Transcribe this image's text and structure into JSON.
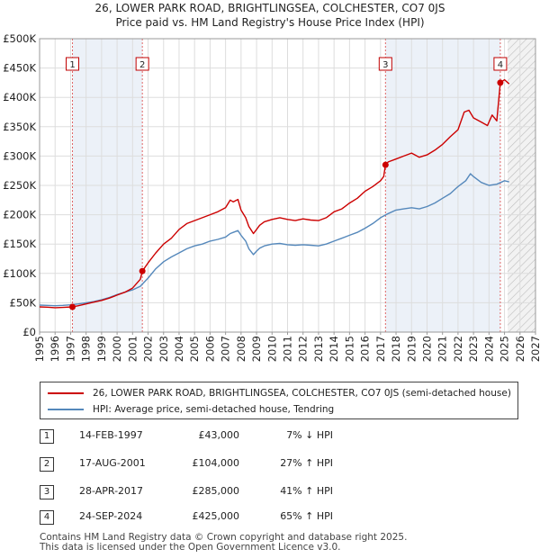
{
  "title_line1": "26, LOWER PARK ROAD, BRIGHTLINGSEA, COLCHESTER, CO7 0JS",
  "title_line2": "Price paid vs. HM Land Registry's House Price Index (HPI)",
  "colors": {
    "property": "#cc0000",
    "hpi": "#5588bb",
    "marker_line": "#e06666",
    "shade": "#dde6f2",
    "grid": "#dddddd"
  },
  "chart_data": {
    "type": "line",
    "xlim": [
      1995,
      2027
    ],
    "ylim": [
      0,
      500000
    ],
    "yticks": [
      0,
      50000,
      100000,
      150000,
      200000,
      250000,
      300000,
      350000,
      400000,
      450000,
      500000
    ],
    "ytick_labels": [
      "£0",
      "£50K",
      "£100K",
      "£150K",
      "£200K",
      "£250K",
      "£300K",
      "£350K",
      "£400K",
      "£450K",
      "£500K"
    ],
    "xticks": [
      1995,
      1996,
      1997,
      1998,
      1999,
      2000,
      2001,
      2002,
      2003,
      2004,
      2005,
      2006,
      2007,
      2008,
      2009,
      2010,
      2011,
      2012,
      2013,
      2014,
      2015,
      2016,
      2017,
      2018,
      2019,
      2020,
      2021,
      2022,
      2023,
      2024,
      2025,
      2026,
      2027
    ],
    "xtick_labels": [
      "1995",
      "1996",
      "1997",
      "1998",
      "1999",
      "2000",
      "2001",
      "2002",
      "2003",
      "2004",
      "2005",
      "2006",
      "2007",
      "2008",
      "2009",
      "2010",
      "2011",
      "2012",
      "2013",
      "2014",
      "2015",
      "2016",
      "2017",
      "2018",
      "2019",
      "2020",
      "2021",
      "2022",
      "2023",
      "2024",
      "2025",
      "2026",
      "2027"
    ],
    "future_from": 2025.2,
    "series": [
      {
        "name": "26, LOWER PARK ROAD, BRIGHTLINGSEA, COLCHESTER, CO7 0JS (semi-detached house)",
        "x": [
          1995.0,
          1995.5,
          1996.0,
          1996.5,
          1997.12,
          1997.5,
          1998.0,
          1998.5,
          1999.0,
          1999.5,
          2000.0,
          2000.5,
          2001.0,
          2001.5,
          2001.63,
          2002.0,
          2002.5,
          2003.0,
          2003.5,
          2004.0,
          2004.5,
          2005.0,
          2005.5,
          2006.0,
          2006.5,
          2007.0,
          2007.3,
          2007.5,
          2007.8,
          2008.0,
          2008.3,
          2008.5,
          2008.8,
          2009.0,
          2009.2,
          2009.5,
          2010.0,
          2010.5,
          2011.0,
          2011.5,
          2012.0,
          2012.5,
          2013.0,
          2013.5,
          2014.0,
          2014.5,
          2015.0,
          2015.5,
          2016.0,
          2016.5,
          2017.0,
          2017.2,
          2017.32,
          2017.5,
          2018.0,
          2018.5,
          2019.0,
          2019.5,
          2020.0,
          2020.5,
          2021.0,
          2021.5,
          2022.0,
          2022.4,
          2022.7,
          2023.0,
          2023.5,
          2023.9,
          2024.2,
          2024.5,
          2024.73,
          2025.0,
          2025.3
        ],
        "values": [
          43000,
          42500,
          41500,
          42000,
          43000,
          45000,
          48000,
          51000,
          54000,
          58000,
          63000,
          68000,
          75000,
          90000,
          104000,
          118000,
          135000,
          150000,
          160000,
          175000,
          185000,
          190000,
          195000,
          200000,
          205000,
          212000,
          225000,
          222000,
          226000,
          208000,
          195000,
          180000,
          168000,
          175000,
          182000,
          188000,
          192000,
          195000,
          192000,
          190000,
          193000,
          191000,
          190000,
          195000,
          205000,
          210000,
          220000,
          228000,
          240000,
          248000,
          258000,
          265000,
          285000,
          290000,
          295000,
          300000,
          305000,
          298000,
          302000,
          310000,
          320000,
          333000,
          345000,
          375000,
          378000,
          365000,
          358000,
          352000,
          370000,
          360000,
          425000,
          430000,
          423000
        ]
      },
      {
        "name": "HPI: Average price, semi-detached house, Tendring",
        "x": [
          1995.0,
          1995.5,
          1996.0,
          1996.5,
          1997.0,
          1997.5,
          1998.0,
          1998.5,
          1999.0,
          1999.5,
          2000.0,
          2000.5,
          2001.0,
          2001.5,
          2002.0,
          2002.5,
          2003.0,
          2003.5,
          2004.0,
          2004.5,
          2005.0,
          2005.5,
          2006.0,
          2006.5,
          2007.0,
          2007.3,
          2007.5,
          2007.8,
          2008.0,
          2008.3,
          2008.5,
          2008.8,
          2009.0,
          2009.2,
          2009.5,
          2010.0,
          2010.5,
          2011.0,
          2011.5,
          2012.0,
          2012.5,
          2013.0,
          2013.5,
          2014.0,
          2014.5,
          2015.0,
          2015.5,
          2016.0,
          2016.5,
          2017.0,
          2017.5,
          2018.0,
          2018.5,
          2019.0,
          2019.5,
          2020.0,
          2020.5,
          2021.0,
          2021.5,
          2022.0,
          2022.5,
          2022.8,
          2023.0,
          2023.5,
          2024.0,
          2024.5,
          2025.0,
          2025.3
        ],
        "values": [
          46000,
          45500,
          45000,
          45500,
          46500,
          48000,
          50000,
          52000,
          55000,
          59000,
          64000,
          68000,
          72000,
          78000,
          92000,
          108000,
          120000,
          128000,
          135000,
          142000,
          147000,
          150000,
          155000,
          158000,
          162000,
          168000,
          170000,
          173000,
          165000,
          155000,
          142000,
          132000,
          138000,
          143000,
          147000,
          150000,
          151000,
          149000,
          148000,
          149000,
          148000,
          147000,
          150000,
          155000,
          160000,
          165000,
          170000,
          177000,
          185000,
          195000,
          202000,
          208000,
          210000,
          212000,
          210000,
          214000,
          220000,
          228000,
          236000,
          248000,
          258000,
          270000,
          265000,
          255000,
          250000,
          252000,
          258000,
          256000
        ]
      }
    ],
    "sales": [
      {
        "label": "1",
        "x": 1997.12,
        "value": 43000
      },
      {
        "label": "2",
        "x": 2001.63,
        "value": 104000
      },
      {
        "label": "3",
        "x": 2017.32,
        "value": 285000
      },
      {
        "label": "4",
        "x": 2024.73,
        "value": 425000
      }
    ]
  },
  "legend": {
    "property_label": "26, LOWER PARK ROAD, BRIGHTLINGSEA, COLCHESTER, CO7 0JS (semi-detached house)",
    "hpi_label": "HPI: Average price, semi-detached house, Tendring"
  },
  "transactions": [
    {
      "num": "1",
      "date": "14-FEB-1997",
      "price": "£43,000",
      "hpi": "7% ↓ HPI"
    },
    {
      "num": "2",
      "date": "17-AUG-2001",
      "price": "£104,000",
      "hpi": "27% ↑ HPI"
    },
    {
      "num": "3",
      "date": "28-APR-2017",
      "price": "£285,000",
      "hpi": "41% ↑ HPI"
    },
    {
      "num": "4",
      "date": "24-SEP-2024",
      "price": "£425,000",
      "hpi": "65% ↑ HPI"
    }
  ],
  "footer": {
    "line1": "Contains HM Land Registry data © Crown copyright and database right 2025.",
    "line2": "This data is licensed under the Open Government Licence v3.0."
  }
}
